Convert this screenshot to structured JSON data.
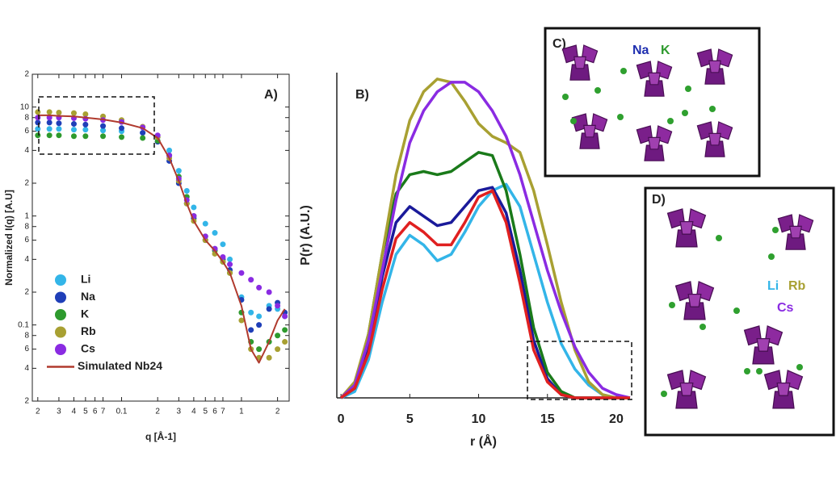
{
  "chart_data": [
    {
      "type": "line",
      "annotation": "A)",
      "x_label": "q [Å-1]",
      "y_label": "Normalized I(q) [A.U]",
      "log_x": true,
      "log_y": true,
      "xlim": [
        0.018,
        2.5
      ],
      "ylim": [
        0.02,
        20
      ],
      "xticks": [
        {
          "value": 0.02,
          "label": "2"
        },
        {
          "value": 0.03,
          "label": "3"
        },
        {
          "value": 0.04,
          "label": "4"
        },
        {
          "value": 0.05,
          "label": "5"
        },
        {
          "value": 0.06,
          "label": "6"
        },
        {
          "value": 0.07,
          "label": "7"
        },
        0.1,
        {
          "value": 0.2,
          "label": "2"
        },
        {
          "value": 0.3,
          "label": "3"
        },
        {
          "value": 0.4,
          "label": "4"
        },
        {
          "value": 0.5,
          "label": "5"
        },
        {
          "value": 0.6,
          "label": "6"
        },
        {
          "value": 0.7,
          "label": "7"
        },
        1,
        {
          "value": 2,
          "label": "2"
        }
      ],
      "yticks": [
        {
          "value": 0.02,
          "label": "2"
        },
        {
          "value": 0.04,
          "label": "4"
        },
        {
          "value": 0.06,
          "label": "6"
        },
        {
          "value": 0.08,
          "label": "8"
        },
        0.1,
        {
          "value": 0.2,
          "label": "2"
        },
        {
          "value": 0.4,
          "label": "4"
        },
        {
          "value": 0.6,
          "label": "6"
        },
        {
          "value": 0.8,
          "label": "8"
        },
        1,
        {
          "value": 2,
          "label": "2"
        },
        {
          "value": 4,
          "label": "4"
        },
        {
          "value": 6,
          "label": "6"
        },
        {
          "value": 8,
          "label": "8"
        },
        10,
        {
          "value": 20,
          "label": "2"
        }
      ],
      "x": [
        0.02,
        0.025,
        0.03,
        0.04,
        0.05,
        0.07,
        0.1,
        0.15,
        0.2,
        0.25,
        0.3,
        0.35,
        0.4,
        0.5,
        0.6,
        0.7,
        0.8,
        1.0,
        1.2,
        1.4,
        1.7,
        2.0,
        2.3
      ],
      "series": [
        {
          "name": "Li",
          "color": "#33b5e8",
          "mode": "markers",
          "values": [
            6.3,
            6.3,
            6.3,
            6.2,
            6.2,
            6.1,
            6.0,
            5.8,
            5.3,
            4.0,
            2.6,
            1.7,
            1.2,
            0.85,
            0.7,
            0.55,
            0.4,
            0.18,
            0.13,
            0.12,
            0.15,
            0.14,
            0.12
          ]
        },
        {
          "name": "Na",
          "color": "#1f3fb8",
          "mode": "markers",
          "values": [
            7.2,
            7.2,
            7.1,
            7.0,
            6.9,
            6.7,
            6.4,
            5.8,
            4.8,
            3.2,
            2.0,
            1.3,
            0.95,
            0.6,
            0.5,
            0.4,
            0.32,
            0.17,
            0.09,
            0.1,
            0.14,
            0.16,
            0.13
          ]
        },
        {
          "name": "K",
          "color": "#2e9a2e",
          "mode": "markers",
          "values": [
            5.5,
            5.5,
            5.5,
            5.4,
            5.4,
            5.4,
            5.3,
            5.2,
            4.9,
            3.6,
            2.3,
            1.5,
            1.0,
            0.65,
            0.48,
            0.38,
            0.3,
            0.13,
            0.07,
            0.06,
            0.07,
            0.08,
            0.09
          ]
        },
        {
          "name": "Rb",
          "color": "#a8a032",
          "mode": "markers",
          "values": [
            9.0,
            9.0,
            8.9,
            8.8,
            8.6,
            8.2,
            7.6,
            6.6,
            5.3,
            3.4,
            2.1,
            1.3,
            0.9,
            0.6,
            0.45,
            0.38,
            0.3,
            0.11,
            0.06,
            0.05,
            0.05,
            0.06,
            0.07
          ]
        },
        {
          "name": "Cs",
          "color": "#8a2be2",
          "mode": "markers",
          "values": [
            8.0,
            8.0,
            8.0,
            7.9,
            7.8,
            7.6,
            7.3,
            6.5,
            5.5,
            3.6,
            2.2,
            1.4,
            1.0,
            0.65,
            0.5,
            0.42,
            0.36,
            0.3,
            0.26,
            0.22,
            0.2,
            0.15,
            0.12
          ]
        },
        {
          "name": "Simulated Nb24",
          "color": "#b03a2e",
          "mode": "line",
          "values": [
            8.4,
            8.4,
            8.3,
            8.2,
            8.0,
            7.7,
            7.2,
            6.4,
            5.2,
            3.4,
            2.1,
            1.3,
            0.9,
            0.6,
            0.48,
            0.38,
            0.3,
            0.15,
            0.06,
            0.045,
            0.07,
            0.11,
            0.14
          ]
        }
      ]
    },
    {
      "type": "line",
      "annotation": "B)",
      "x_label": "r (Å)",
      "y_label": "P(r) (A.U.)",
      "xlim": [
        -0.3,
        21
      ],
      "ylim": [
        0,
        1.02
      ],
      "xticks": [
        0,
        5,
        10,
        15,
        20
      ],
      "x": [
        0,
        1,
        2,
        3,
        4,
        5,
        6,
        7,
        8,
        9,
        10,
        11,
        12,
        13,
        14,
        15,
        16,
        17,
        18,
        19,
        20,
        21
      ],
      "series": [
        {
          "color": "#33b5e8",
          "values": [
            0,
            0.02,
            0.12,
            0.3,
            0.45,
            0.51,
            0.48,
            0.43,
            0.45,
            0.52,
            0.6,
            0.65,
            0.67,
            0.6,
            0.45,
            0.3,
            0.17,
            0.09,
            0.04,
            0.01,
            0,
            0
          ]
        },
        {
          "color": "#1a1a9a",
          "values": [
            0,
            0.03,
            0.15,
            0.38,
            0.55,
            0.6,
            0.57,
            0.54,
            0.55,
            0.6,
            0.65,
            0.66,
            0.58,
            0.4,
            0.18,
            0.06,
            0.01,
            0,
            0,
            0,
            0,
            0
          ]
        },
        {
          "color": "#1a7a1a",
          "values": [
            0,
            0.04,
            0.2,
            0.45,
            0.64,
            0.7,
            0.71,
            0.7,
            0.71,
            0.74,
            0.77,
            0.76,
            0.65,
            0.45,
            0.22,
            0.08,
            0.02,
            0,
            0,
            0,
            0,
            0
          ]
        },
        {
          "color": "#a8a032",
          "values": [
            0,
            0.05,
            0.2,
            0.45,
            0.7,
            0.87,
            0.96,
            1.0,
            0.99,
            0.93,
            0.86,
            0.82,
            0.8,
            0.77,
            0.65,
            0.48,
            0.3,
            0.15,
            0.05,
            0.01,
            0,
            0
          ]
        },
        {
          "color": "#8a2be2",
          "values": [
            0,
            0.04,
            0.18,
            0.4,
            0.62,
            0.8,
            0.9,
            0.96,
            0.99,
            0.99,
            0.96,
            0.9,
            0.82,
            0.7,
            0.55,
            0.4,
            0.27,
            0.16,
            0.08,
            0.03,
            0.01,
            0
          ]
        },
        {
          "color": "#e02020",
          "values": [
            0,
            0.03,
            0.14,
            0.34,
            0.5,
            0.55,
            0.52,
            0.48,
            0.48,
            0.55,
            0.63,
            0.65,
            0.55,
            0.36,
            0.15,
            0.05,
            0.01,
            0,
            0,
            0,
            0,
            0
          ]
        }
      ]
    }
  ],
  "panels": {
    "c": {
      "label": "C)",
      "ions": [
        {
          "text": "Na",
          "color": "#1f2fb0"
        },
        {
          "text": "K",
          "color": "#2e9a2e"
        }
      ]
    },
    "d": {
      "label": "D)",
      "ions": [
        {
          "text": "Li",
          "color": "#33b5e8"
        },
        {
          "text": "Rb",
          "color": "#a8a032"
        },
        {
          "text": "Cs",
          "color": "#8a2be2"
        }
      ]
    }
  }
}
